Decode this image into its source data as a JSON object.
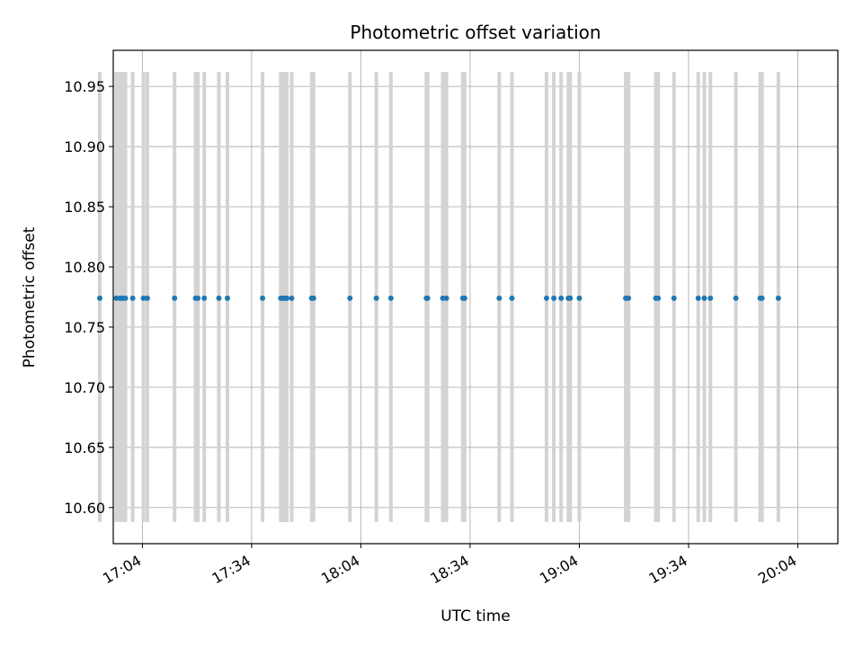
{
  "chart_data": {
    "type": "scatter",
    "title": "Photometric offset variation",
    "xlabel": "UTC time",
    "ylabel": "Photometric offset",
    "xlim": [
      "16:56",
      "20:15"
    ],
    "ylim": [
      10.57,
      10.98
    ],
    "x_ticks": [
      "17:04",
      "17:34",
      "18:04",
      "18:34",
      "19:04",
      "19:34",
      "20:04"
    ],
    "y_ticks": [
      "10.60",
      "10.65",
      "10.70",
      "10.75",
      "10.80",
      "10.85",
      "10.90",
      "10.95"
    ],
    "grid": true,
    "errorbar_range": [
      10.588,
      10.962
    ],
    "series": [
      {
        "marker_color": "#1f77b4",
        "errorbar_color": "#d3d3d3",
        "y": 10.774,
        "x": [
          "16:52:17",
          "16:56:50",
          "16:57:52",
          "16:58:31",
          "16:59:20",
          "17:01:20",
          "17:04:17",
          "17:05:21",
          "17:12:50",
          "17:18:36",
          "17:19:15",
          "17:21:00",
          "17:25:00",
          "17:27:21",
          "17:37:00",
          "17:42:00",
          "17:42:40",
          "17:43:10",
          "17:43:40",
          "17:45:00",
          "17:50:30",
          "17:51:00",
          "18:01:00",
          "18:08:15",
          "18:12:15",
          "18:22:00",
          "18:22:20",
          "18:26:30",
          "18:27:30",
          "18:32:00",
          "18:32:30",
          "18:42:00",
          "18:45:30",
          "18:55:00",
          "18:57:00",
          "18:59:00",
          "19:01:00",
          "19:01:30",
          "19:04:00",
          "19:16:45",
          "19:17:30",
          "19:25:00",
          "19:25:40",
          "19:30:00",
          "19:36:40",
          "19:38:20",
          "19:40:00",
          "19:47:00",
          "19:53:40",
          "19:54:10",
          "19:58:40"
        ]
      }
    ]
  }
}
